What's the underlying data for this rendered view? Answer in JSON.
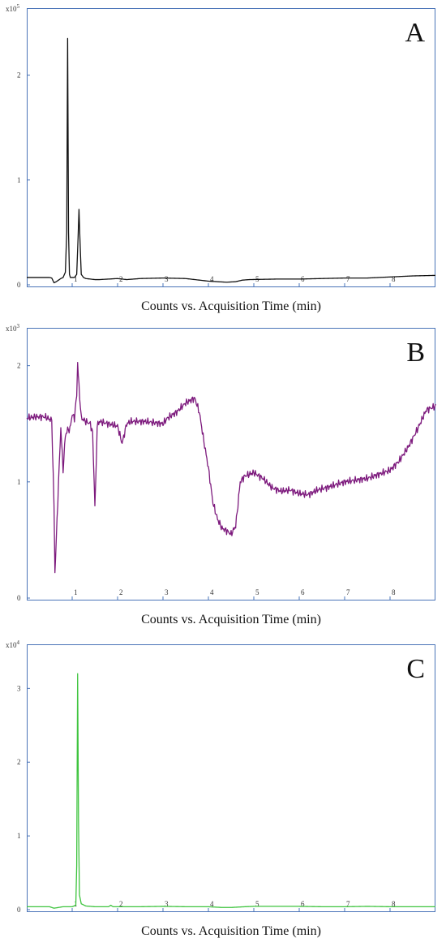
{
  "chart_data": [
    {
      "panel": "A",
      "type": "line",
      "scale_prefix": "x10",
      "scale_exp": "5",
      "xlabel": "Counts vs. Acquisition Time (min)",
      "color": "#111111",
      "x_ticks": [
        "1",
        "2",
        "3",
        "4",
        "5",
        "6",
        "7",
        "8"
      ],
      "y_ticks": [
        "0",
        "1",
        "2"
      ],
      "xlim": [
        0,
        9
      ],
      "ylim": [
        0,
        2.5
      ],
      "grid": false,
      "legend": "none",
      "series": [
        {
          "x": [
            0,
            0.5,
            0.55,
            0.6,
            0.65,
            0.75,
            0.8,
            0.85,
            0.88,
            0.9,
            0.92,
            0.94,
            0.96,
            1.0,
            1.05,
            1.1,
            1.13,
            1.15,
            1.17,
            1.2,
            1.25,
            1.3,
            1.5,
            1.6,
            1.8,
            2.0,
            2.2,
            2.5,
            3.0,
            3.5,
            3.7,
            3.9,
            4.0,
            4.2,
            4.4,
            4.6,
            4.75,
            4.9,
            5.5,
            6.0,
            6.5,
            7.0,
            7.5,
            8.0,
            8.5,
            9.0
          ],
          "y": [
            0.07,
            0.07,
            0.065,
            0.02,
            0.03,
            0.06,
            0.07,
            0.12,
            0.5,
            2.35,
            0.5,
            0.1,
            0.07,
            0.07,
            0.07,
            0.1,
            0.45,
            0.72,
            0.45,
            0.1,
            0.07,
            0.06,
            0.05,
            0.05,
            0.055,
            0.06,
            0.05,
            0.06,
            0.065,
            0.06,
            0.05,
            0.04,
            0.035,
            0.03,
            0.025,
            0.03,
            0.045,
            0.05,
            0.055,
            0.055,
            0.06,
            0.065,
            0.065,
            0.075,
            0.085,
            0.09
          ]
        }
      ]
    },
    {
      "panel": "B",
      "type": "line",
      "scale_prefix": "x10",
      "scale_exp": "3",
      "xlabel": "Counts vs. Acquisition Time (min)",
      "color": "#7d1a7d",
      "x_ticks": [
        "1",
        "2",
        "3",
        "4",
        "5",
        "6",
        "7",
        "8"
      ],
      "y_ticks": [
        "0",
        "1",
        "2"
      ],
      "xlim": [
        0,
        9
      ],
      "ylim": [
        0,
        2.2
      ],
      "grid": false,
      "legend": "none",
      "series": [
        {
          "x": [
            0,
            0.2,
            0.4,
            0.55,
            0.6,
            0.62,
            0.65,
            0.7,
            0.75,
            0.8,
            0.85,
            0.9,
            0.95,
            1.0,
            1.05,
            1.1,
            1.12,
            1.15,
            1.2,
            1.3,
            1.4,
            1.45,
            1.5,
            1.52,
            1.55,
            1.6,
            1.8,
            2.0,
            2.1,
            2.2,
            2.3,
            2.6,
            3.0,
            3.1,
            3.3,
            3.5,
            3.6,
            3.7,
            3.8,
            3.9,
            4.0,
            4.1,
            4.2,
            4.3,
            4.4,
            4.5,
            4.6,
            4.65,
            4.7,
            4.8,
            5.0,
            5.2,
            5.4,
            5.6,
            5.8,
            6.0,
            6.2,
            6.4,
            6.6,
            7.0,
            7.5,
            8.0,
            8.2,
            8.4,
            8.6,
            8.8,
            9.0
          ],
          "y": [
            1.55,
            1.56,
            1.56,
            1.53,
            0.8,
            0.22,
            0.5,
            1.0,
            1.47,
            1.1,
            1.4,
            1.45,
            1.45,
            1.58,
            1.55,
            1.75,
            2.03,
            1.82,
            1.55,
            1.52,
            1.5,
            1.42,
            0.8,
            1.0,
            1.48,
            1.52,
            1.5,
            1.48,
            1.33,
            1.5,
            1.52,
            1.52,
            1.5,
            1.55,
            1.6,
            1.68,
            1.7,
            1.72,
            1.6,
            1.35,
            1.12,
            0.82,
            0.68,
            0.6,
            0.58,
            0.55,
            0.62,
            0.8,
            1.0,
            1.05,
            1.08,
            1.03,
            0.95,
            0.92,
            0.93,
            0.9,
            0.89,
            0.93,
            0.95,
            1.0,
            1.03,
            1.1,
            1.18,
            1.3,
            1.45,
            1.62,
            1.65
          ]
        }
      ]
    },
    {
      "panel": "C",
      "type": "line",
      "scale_prefix": "x10",
      "scale_exp": "4",
      "xlabel": "Counts vs. Acquisition Time (min)",
      "color": "#3ec43e",
      "x_ticks": [
        "1",
        "2",
        "3",
        "4",
        "5",
        "6",
        "7",
        "8"
      ],
      "y_ticks": [
        "0",
        "1",
        "2",
        "3"
      ],
      "xlim": [
        0,
        9
      ],
      "ylim": [
        0,
        3.4
      ],
      "grid": false,
      "legend": "none",
      "series": [
        {
          "x": [
            0,
            0.5,
            0.6,
            0.7,
            0.8,
            1.0,
            1.08,
            1.1,
            1.12,
            1.14,
            1.16,
            1.2,
            1.3,
            1.5,
            1.8,
            1.85,
            1.9,
            2.0,
            2.5,
            3.0,
            3.5,
            4.0,
            4.3,
            4.5,
            4.8,
            5.0,
            5.5,
            6.0,
            6.5,
            7.0,
            7.5,
            8.0,
            8.5,
            9.0
          ],
          "y": [
            0.04,
            0.04,
            0.02,
            0.03,
            0.04,
            0.04,
            0.06,
            0.6,
            3.2,
            1.2,
            0.2,
            0.08,
            0.05,
            0.04,
            0.04,
            0.06,
            0.04,
            0.04,
            0.04,
            0.045,
            0.04,
            0.04,
            0.03,
            0.03,
            0.04,
            0.045,
            0.045,
            0.045,
            0.04,
            0.04,
            0.045,
            0.04,
            0.04,
            0.04
          ]
        }
      ]
    }
  ]
}
